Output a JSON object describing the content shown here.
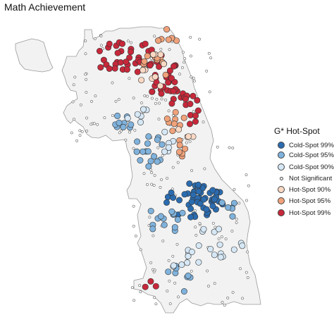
{
  "title": "Math Achievement",
  "legend": {
    "title": "G* Hot-Spot",
    "items": [
      {
        "key": "cold99",
        "label": "Cold-Spot 99%",
        "color": "#2b6cb0"
      },
      {
        "key": "cold95",
        "label": "Cold-Spot 95%",
        "color": "#7fb2dc"
      },
      {
        "key": "cold90",
        "label": "Cold-Spot 90%",
        "color": "#d6e8f6"
      },
      {
        "key": "ns",
        "label": "Not Significant",
        "color": "#ffffff"
      },
      {
        "key": "hot90",
        "label": "Hot-Spot 90%",
        "color": "#f9d8c4"
      },
      {
        "key": "hot95",
        "label": "Hot-Spot 95%",
        "color": "#f0a27a"
      },
      {
        "key": "hot99",
        "label": "Hot-Spot 99%",
        "color": "#c7283a"
      }
    ]
  }
}
